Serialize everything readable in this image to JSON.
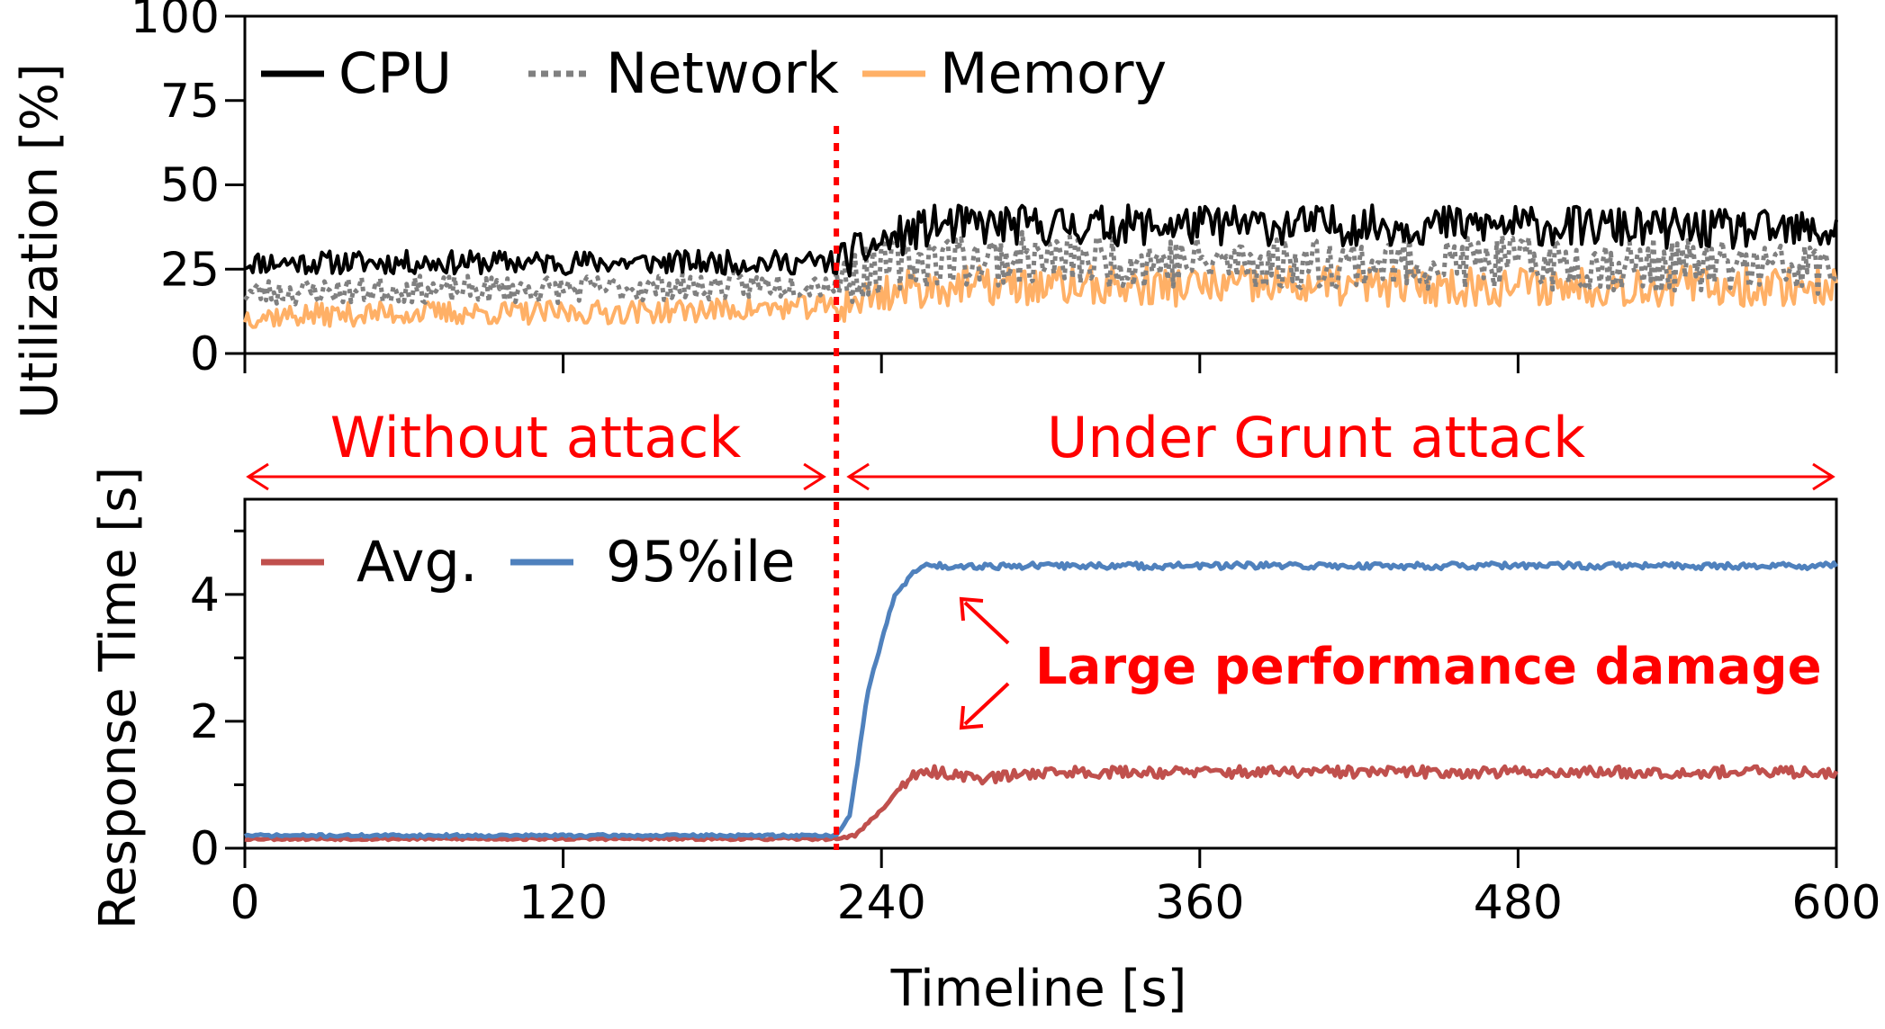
{
  "colors": {
    "cpu": "#000000",
    "network": "#808080",
    "memory": "#ffb066",
    "avg": "#c0504d",
    "p95": "#4f81bd",
    "attack_marker": "#ff0000"
  },
  "attack_start_s": 223,
  "phases": {
    "before": "Without attack",
    "after": "Under Grunt attack"
  },
  "annotation": "Large performance damage",
  "chart_data": [
    {
      "type": "line",
      "ylabel": "Utilization [%]",
      "xlabel": "",
      "xlim": [
        0,
        600
      ],
      "ylim": [
        0,
        100
      ],
      "yticks": [
        0,
        25,
        50,
        75,
        100
      ],
      "xticks": [
        0,
        120,
        240,
        360,
        480,
        600
      ],
      "xtick_labels_shown": false,
      "legend": "top-left",
      "series": [
        {
          "name": "CPU",
          "style": "solid",
          "x": [
            0,
            60,
            120,
            180,
            223,
            240,
            260,
            300,
            360,
            420,
            480,
            540,
            600
          ],
          "y": [
            27,
            27,
            27,
            27,
            27,
            33,
            38,
            38,
            38,
            38,
            38,
            37,
            36
          ]
        },
        {
          "name": "Network",
          "style": "dotted",
          "x": [
            0,
            60,
            120,
            180,
            223,
            240,
            260,
            300,
            360,
            420,
            480,
            540,
            600
          ],
          "y": [
            18,
            19,
            19,
            20,
            21,
            26,
            28,
            28,
            27,
            27,
            27,
            26,
            25
          ]
        },
        {
          "name": "Memory",
          "style": "solid",
          "x": [
            0,
            60,
            120,
            180,
            223,
            240,
            260,
            300,
            360,
            420,
            480,
            540,
            600
          ],
          "y": [
            11,
            12,
            12,
            13,
            14,
            18,
            20,
            20,
            20,
            20,
            20,
            20,
            20
          ]
        }
      ]
    },
    {
      "type": "line",
      "ylabel": "Response Time [s]",
      "xlabel": "Timeline [s]",
      "xlim": [
        0,
        600
      ],
      "ylim": [
        0,
        5.5
      ],
      "yticks": [
        0,
        2,
        4
      ],
      "xticks": [
        0,
        120,
        240,
        360,
        480,
        600
      ],
      "legend": "top-left",
      "series": [
        {
          "name": "Avg.",
          "x": [
            0,
            60,
            120,
            180,
            223,
            230,
            240,
            250,
            260,
            280,
            300,
            360,
            420,
            480,
            540,
            600
          ],
          "y": [
            0.15,
            0.15,
            0.15,
            0.15,
            0.15,
            0.2,
            0.6,
            1.1,
            1.2,
            1.1,
            1.2,
            1.2,
            1.2,
            1.2,
            1.2,
            1.2
          ]
        },
        {
          "name": "95%ile",
          "x": [
            0,
            60,
            120,
            180,
            223,
            228,
            235,
            245,
            255,
            270,
            300,
            360,
            420,
            480,
            540,
            600
          ],
          "y": [
            0.2,
            0.2,
            0.2,
            0.2,
            0.2,
            0.5,
            2.5,
            4.0,
            4.45,
            4.45,
            4.45,
            4.45,
            4.45,
            4.45,
            4.45,
            4.45
          ]
        }
      ]
    }
  ]
}
